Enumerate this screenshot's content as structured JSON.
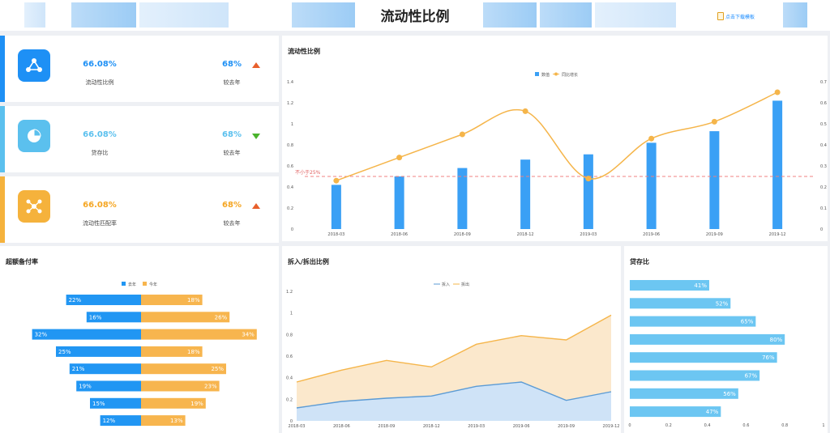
{
  "header": {
    "title": "流动性比例",
    "download_label": "点击下载模板"
  },
  "kpis": [
    {
      "value": "66.08%",
      "label": "流动性比例",
      "change": "68%",
      "change_label": "较去年",
      "trend": "up",
      "color": "#1e90f5",
      "icon": "network-icon"
    },
    {
      "value": "66.08%",
      "label": "贷存比",
      "change": "68%",
      "change_label": "较去年",
      "trend": "down",
      "color": "#5bc0ee",
      "icon": "pie-chart-icon"
    },
    {
      "value": "66.08%",
      "label": "流动性匹配率",
      "change": "68%",
      "change_label": "较去年",
      "trend": "up",
      "color": "#f5b23c",
      "icon": "molecule-icon"
    }
  ],
  "chart_data": [
    {
      "type": "bar",
      "title": "流动性比例",
      "categories": [
        "2018-03",
        "2018-06",
        "2018-09",
        "2018-12",
        "2019-03",
        "2019-06",
        "2019-09",
        "2019-12"
      ],
      "series": [
        {
          "name": "数值",
          "type": "bar",
          "values": [
            0.42,
            0.5,
            0.58,
            0.66,
            0.71,
            0.82,
            0.93,
            1.22
          ],
          "axis": "left"
        },
        {
          "name": "同比增长",
          "type": "line",
          "values": [
            0.23,
            0.34,
            0.45,
            0.56,
            0.24,
            0.43,
            0.51,
            0.65
          ],
          "axis": "right"
        }
      ],
      "ylim": [
        0,
        1.4
      ],
      "yticks": [
        "0",
        "0.2",
        "0.4",
        "0.6",
        "0.8",
        "1",
        "1.2",
        "1.4"
      ],
      "y2lim": [
        0,
        0.7
      ],
      "y2ticks": [
        "0",
        "0.1",
        "0.2",
        "0.3",
        "0.4",
        "0.5",
        "0.6",
        "0.7"
      ],
      "reference_line": {
        "value": 0.25,
        "label": "不小于25%"
      },
      "legend": "top-center",
      "colors": {
        "bar": "#3aa0f5",
        "line": "#f5b54a",
        "ref": "#f08080"
      }
    },
    {
      "type": "bar",
      "title": "超额备付率",
      "orientation": "horizontal-diverging",
      "series": [
        {
          "name": "去年",
          "values": [
            22,
            16,
            32,
            25,
            21,
            19,
            15,
            12
          ]
        },
        {
          "name": "今年",
          "values": [
            18,
            26,
            34,
            18,
            25,
            23,
            19,
            13
          ]
        }
      ],
      "value_suffix": "%",
      "legend": "top-center",
      "colors": {
        "left": "#2196f3",
        "right": "#f7b54e"
      }
    },
    {
      "type": "area",
      "title": "拆入/拆出比例",
      "categories": [
        "2018-03",
        "2018-06",
        "2018-09",
        "2018-12",
        "2019-03",
        "2019-06",
        "2019-09",
        "2019-12"
      ],
      "series": [
        {
          "name": "拆入",
          "values": [
            0.12,
            0.18,
            0.21,
            0.23,
            0.32,
            0.36,
            0.19,
            0.27
          ]
        },
        {
          "name": "拆出",
          "values": [
            0.36,
            0.47,
            0.56,
            0.5,
            0.71,
            0.79,
            0.75,
            0.98
          ]
        }
      ],
      "ylim": [
        0,
        1.2
      ],
      "yticks": [
        "0",
        "0.2",
        "0.4",
        "0.6",
        "0.8",
        "1",
        "1.2"
      ],
      "legend": "top-center",
      "colors": {
        "in": "#5b9bd5",
        "in_fill": "#cfe3f7",
        "out": "#f5b54a",
        "out_fill": "#fbe8cc"
      }
    },
    {
      "type": "bar",
      "title": "贷存比",
      "orientation": "horizontal",
      "values": [
        0.41,
        0.52,
        0.65,
        0.8,
        0.76,
        0.67,
        0.56,
        0.47
      ],
      "labels": [
        "41%",
        "52%",
        "65%",
        "80%",
        "76%",
        "67%",
        "56%",
        "47%"
      ],
      "xlim": [
        0,
        1
      ],
      "xticks": [
        "0",
        "0.2",
        "0.4",
        "0.6",
        "0.8",
        "1"
      ],
      "colors": {
        "bar": "#6cc6f2"
      }
    }
  ]
}
